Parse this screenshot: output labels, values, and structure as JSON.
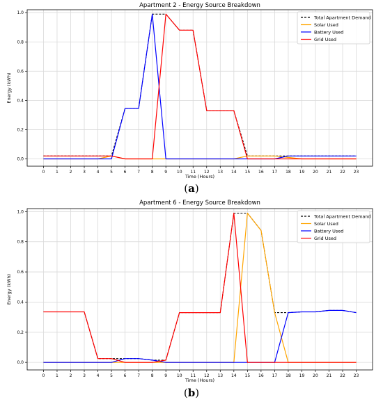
{
  "panels": [
    {
      "label_open": "(",
      "label_letter": "a",
      "label_close": ")"
    },
    {
      "label_open": "(",
      "label_letter": "b",
      "label_close": ")"
    }
  ],
  "colors": {
    "demand": "#000000",
    "solar": "#FFA500",
    "battery": "#0000FF",
    "grid": "#FF0000"
  },
  "chart_data": [
    {
      "type": "line",
      "title": "Apartment 2 - Energy Source Breakdown",
      "xlabel": "Time (Hours)",
      "ylabel": "Energy (kWh)",
      "x": [
        0,
        1,
        2,
        3,
        4,
        5,
        6,
        7,
        8,
        9,
        10,
        11,
        12,
        13,
        14,
        15,
        16,
        17,
        18,
        19,
        20,
        21,
        22,
        23
      ],
      "xlim": [
        -1.2,
        24.2
      ],
      "ylim": [
        -0.05,
        1.02
      ],
      "yticks": [
        0.0,
        0.2,
        0.4,
        0.6,
        0.8,
        1.0
      ],
      "grid": true,
      "legend_position": "top-right",
      "series": [
        {
          "name": "Total Apartment Demand",
          "color": "#000000",
          "dash": true,
          "values": [
            0.02,
            0.02,
            0.02,
            0.02,
            0.02,
            0.02,
            0.345,
            0.345,
            0.99,
            0.99,
            0.88,
            0.88,
            0.33,
            0.33,
            0.33,
            0.02,
            0.02,
            0.02,
            0.02,
            0.02,
            0.02,
            0.02,
            0.02,
            0.02
          ]
        },
        {
          "name": "Solar Used",
          "color": "#FFA500",
          "dash": false,
          "values": [
            0,
            0,
            0,
            0,
            0,
            0.02,
            0,
            0,
            0,
            0,
            0,
            0,
            0,
            0,
            0,
            0.02,
            0.02,
            0.02,
            0.01,
            0,
            0,
            0,
            0,
            0
          ]
        },
        {
          "name": "Battery Used",
          "color": "#0000FF",
          "dash": false,
          "values": [
            0,
            0,
            0,
            0,
            0,
            0,
            0.345,
            0.345,
            0.99,
            0,
            0,
            0,
            0,
            0,
            0,
            0,
            0,
            0,
            0.02,
            0.02,
            0.02,
            0.02,
            0.02,
            0.02
          ]
        },
        {
          "name": "Grid Used",
          "color": "#FF0000",
          "dash": false,
          "values": [
            0.02,
            0.02,
            0.02,
            0.02,
            0.02,
            0.02,
            0,
            0,
            0,
            0.99,
            0.88,
            0.88,
            0.33,
            0.33,
            0.33,
            0,
            0,
            0,
            0,
            0,
            0,
            0,
            0,
            0
          ]
        }
      ]
    },
    {
      "type": "line",
      "title": "Apartment 6 - Energy Source Breakdown",
      "xlabel": "Time (Hours)",
      "ylabel": "Energy (kWh)",
      "x": [
        0,
        1,
        2,
        3,
        4,
        5,
        6,
        7,
        8,
        9,
        10,
        11,
        12,
        13,
        14,
        15,
        16,
        17,
        18,
        19,
        20,
        21,
        22,
        23
      ],
      "xlim": [
        -1.2,
        24.2
      ],
      "ylim": [
        -0.05,
        1.02
      ],
      "yticks": [
        0.0,
        0.2,
        0.4,
        0.6,
        0.8,
        1.0
      ],
      "grid": true,
      "legend_position": "top-right",
      "series": [
        {
          "name": "Total Apartment Demand",
          "color": "#000000",
          "dash": true,
          "values": [
            0.335,
            0.335,
            0.335,
            0.335,
            0.025,
            0.025,
            0.025,
            0.025,
            0.015,
            0.015,
            0.33,
            0.33,
            0.33,
            0.33,
            0.99,
            0.99,
            0.875,
            0.33,
            0.33,
            0.335,
            0.335,
            0.345,
            0.345,
            0.33
          ]
        },
        {
          "name": "Solar Used",
          "color": "#FFA500",
          "dash": false,
          "values": [
            0,
            0,
            0,
            0,
            0,
            0,
            0,
            0,
            0,
            0,
            0,
            0,
            0,
            0,
            0,
            0.99,
            0.875,
            0.33,
            0,
            0,
            0,
            0,
            0,
            0
          ]
        },
        {
          "name": "Battery Used",
          "color": "#0000FF",
          "dash": false,
          "values": [
            0,
            0,
            0,
            0,
            0,
            0,
            0.025,
            0.025,
            0.015,
            0,
            0,
            0,
            0,
            0,
            0,
            0,
            0,
            0,
            0.33,
            0.335,
            0.335,
            0.345,
            0.345,
            0.33
          ]
        },
        {
          "name": "Grid Used",
          "color": "#FF0000",
          "dash": false,
          "values": [
            0.335,
            0.335,
            0.335,
            0.335,
            0.025,
            0.025,
            0,
            0,
            0,
            0.015,
            0.33,
            0.33,
            0.33,
            0.33,
            0.99,
            0,
            0,
            0,
            0,
            0,
            0,
            0,
            0,
            0
          ]
        }
      ]
    }
  ]
}
